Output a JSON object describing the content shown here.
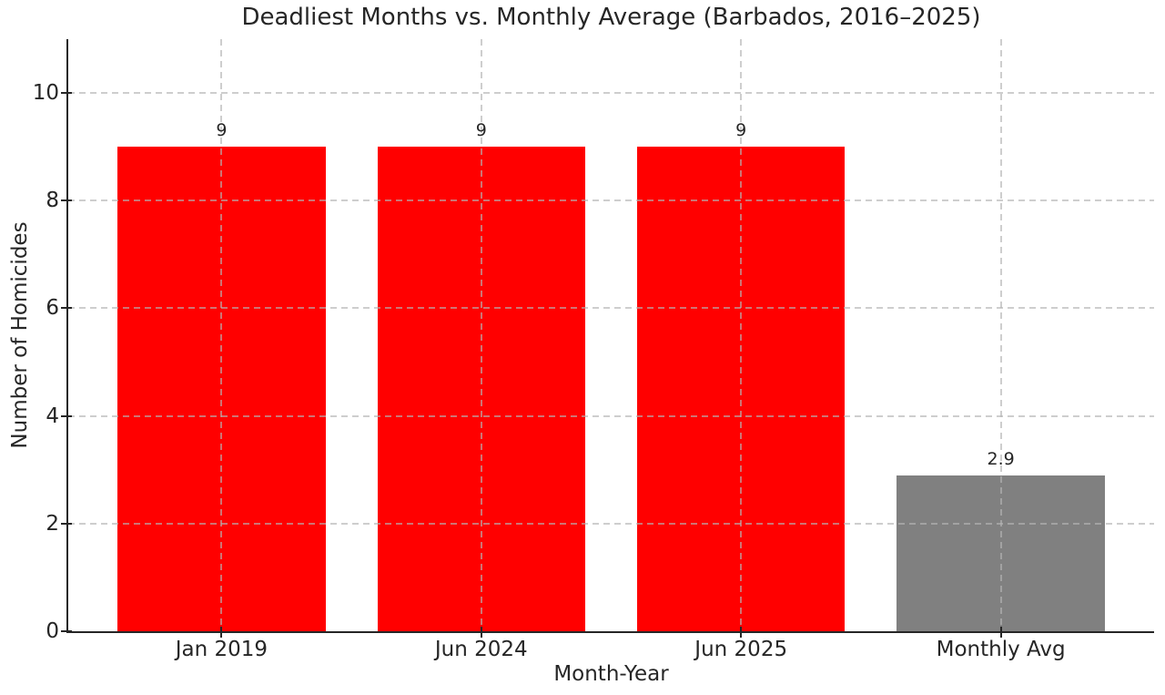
{
  "chart_data": {
    "type": "bar",
    "title": "Deadliest Months vs. Monthly Average (Barbados, 2016–2025)",
    "xlabel": "Month-Year",
    "ylabel": "Number of Homicides",
    "categories": [
      "Jan 2019",
      "Jun 2024",
      "Jun 2025",
      "Monthly Avg"
    ],
    "values": [
      9,
      9,
      9,
      2.9
    ],
    "bar_labels": [
      "9",
      "9",
      "9",
      "2.9"
    ],
    "bar_colors": [
      "#ff0000",
      "#ff0000",
      "#ff0000",
      "#808080"
    ],
    "bar_width_units": 0.8,
    "xlim": [
      -0.59,
      3.59
    ],
    "ylim": [
      0,
      11
    ],
    "yticks": [
      0,
      2,
      4,
      6,
      8,
      10
    ],
    "grid": true,
    "grid_style": "dashed",
    "grid_axes": "both",
    "legend": "none"
  },
  "colors": {
    "bar_red": "#ff0000",
    "bar_gray": "#808080",
    "grid": "#d2d2d2",
    "text": "#262626",
    "spine": "#262626",
    "background": "#ffffff"
  }
}
